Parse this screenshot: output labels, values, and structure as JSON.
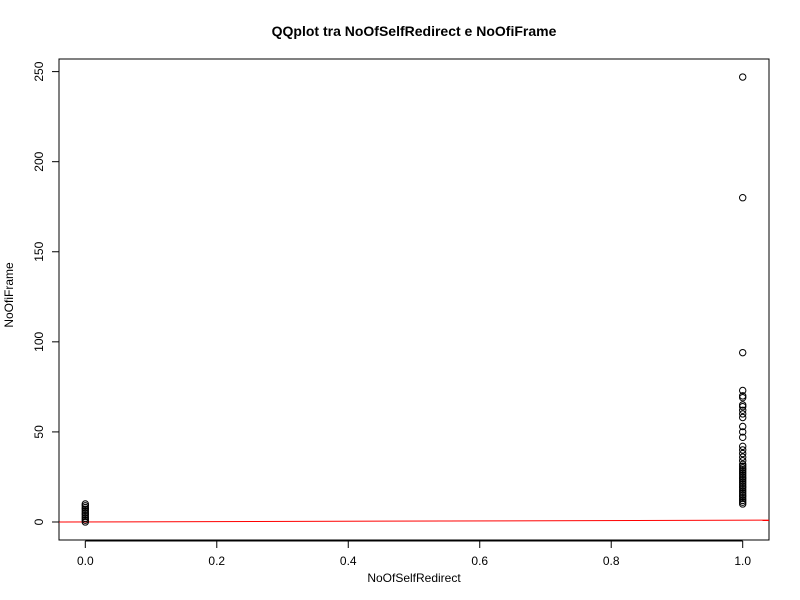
{
  "chart_data": {
    "type": "scatter",
    "title": "QQplot tra NoOfSelfRedirect e NoOfiFrame",
    "xlabel": "NoOfSelfRedirect",
    "ylabel": "NoOfiFrame",
    "xlim": [
      -0.04,
      1.04
    ],
    "ylim": [
      -10,
      257
    ],
    "x_ticks": [
      0.0,
      0.2,
      0.4,
      0.6,
      0.8,
      1.0
    ],
    "x_tick_labels": [
      "0.0",
      "0.2",
      "0.4",
      "0.6",
      "0.8",
      "1.0"
    ],
    "y_ticks": [
      0,
      50,
      100,
      150,
      200,
      250
    ],
    "y_tick_labels": [
      "0",
      "50",
      "100",
      "150",
      "200",
      "250"
    ],
    "grid": false,
    "legend": "none",
    "marker": "open-circle",
    "points": [
      [
        0,
        0
      ],
      [
        0,
        1
      ],
      [
        0,
        2
      ],
      [
        0,
        3
      ],
      [
        0,
        4
      ],
      [
        0,
        5
      ],
      [
        0,
        6
      ],
      [
        0,
        7
      ],
      [
        0,
        8
      ],
      [
        0,
        9
      ],
      [
        0,
        10
      ],
      [
        1,
        10
      ],
      [
        1,
        11
      ],
      [
        1,
        12
      ],
      [
        1,
        13
      ],
      [
        1,
        14
      ],
      [
        1,
        15
      ],
      [
        1,
        16
      ],
      [
        1,
        17
      ],
      [
        1,
        18
      ],
      [
        1,
        19
      ],
      [
        1,
        20
      ],
      [
        1,
        21
      ],
      [
        1,
        22
      ],
      [
        1,
        23
      ],
      [
        1,
        24
      ],
      [
        1,
        25
      ],
      [
        1,
        26
      ],
      [
        1,
        27
      ],
      [
        1,
        28
      ],
      [
        1,
        29
      ],
      [
        1,
        30
      ],
      [
        1,
        31
      ],
      [
        1,
        32
      ],
      [
        1,
        34
      ],
      [
        1,
        36
      ],
      [
        1,
        38
      ],
      [
        1,
        40
      ],
      [
        1,
        42
      ],
      [
        1,
        47
      ],
      [
        1,
        50
      ],
      [
        1,
        53
      ],
      [
        1,
        58
      ],
      [
        1,
        60
      ],
      [
        1,
        62
      ],
      [
        1,
        64
      ],
      [
        1,
        65
      ],
      [
        1,
        69
      ],
      [
        1,
        70
      ],
      [
        1,
        73
      ],
      [
        1,
        94
      ],
      [
        1,
        180
      ],
      [
        1,
        247
      ]
    ],
    "reference_line": {
      "color": "#ff0000",
      "intercept": 0,
      "slope": 1
    },
    "colors": {
      "points": "#000000",
      "line": "#ff0000",
      "axes": "#000000"
    }
  }
}
